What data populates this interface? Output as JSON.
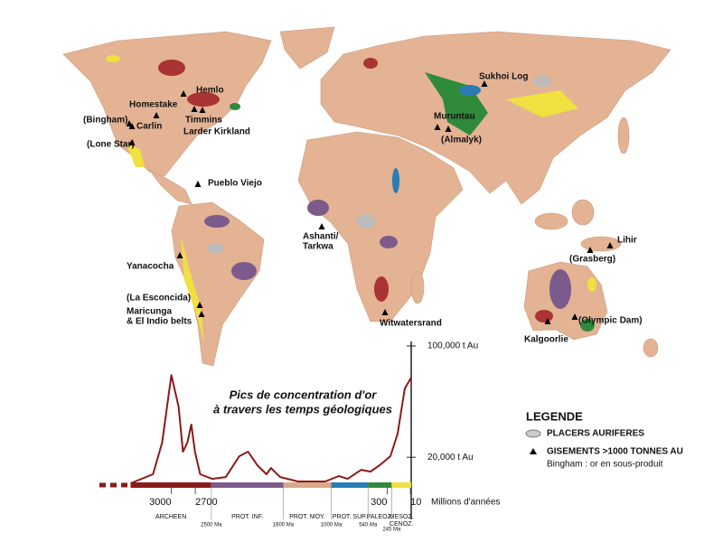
{
  "map": {
    "deposits": [
      {
        "label": [
          "Homestake"
        ]
      },
      {
        "label": [
          "Hemlo"
        ]
      },
      {
        "label": [
          "(Bingham)"
        ]
      },
      {
        "label": [
          "Carlin"
        ]
      },
      {
        "label": [
          "Timmins"
        ]
      },
      {
        "label": [
          "Larder Kirkland"
        ]
      },
      {
        "label": [
          "(Lone Star)"
        ]
      },
      {
        "label": [
          "Pueblo Viejo"
        ]
      },
      {
        "label": [
          "Yanacocha"
        ]
      },
      {
        "label": [
          "(La Esconcida)"
        ]
      },
      {
        "label": [
          "Maricunga",
          "& El Indio belts"
        ]
      },
      {
        "label": [
          "Ashanti/",
          "Tarkwa"
        ]
      },
      {
        "label": [
          "Witwatersrand"
        ]
      },
      {
        "label": [
          "Sukhoi Log"
        ]
      },
      {
        "label": [
          "Muruntau"
        ]
      },
      {
        "label": [
          "(Almalyk)"
        ]
      },
      {
        "label": [
          "Lihir"
        ]
      },
      {
        "label": [
          "(Grasberg)"
        ]
      },
      {
        "label": [
          "(Olympic Dam)"
        ]
      },
      {
        "label": [
          "Kalgoorlie"
        ]
      }
    ],
    "legend": {
      "title": "LEGENDE",
      "placers": "PLACERS AURIFERES",
      "deposits": "GISEMENTS >1000 TONNES AU",
      "note": "Bingham : or en sous-produit"
    }
  },
  "chart_data": {
    "type": "line",
    "title": [
      "Pics de concentration d'or",
      "à travers les temps géologiques"
    ],
    "x_label": "Millions d'années",
    "x": [
      3510,
      3230,
      3115,
      3000,
      2910,
      2855,
      2800,
      2750,
      2705,
      2640,
      2490,
      2320,
      2150,
      2040,
      1925,
      1810,
      1755,
      1640,
      1415,
      1075,
      905,
      795,
      625,
      510,
      395,
      260,
      170,
      80,
      0
    ],
    "series": [
      {
        "color": "#8b1a1a",
        "values": [
          1300,
          7800,
          30500,
          79000,
          56500,
          24000,
          30500,
          43500,
          24000,
          7800,
          4500,
          5800,
          20800,
          24000,
          14300,
          7800,
          12300,
          5800,
          2600,
          2600,
          6500,
          4500,
          11000,
          9700,
          14300,
          20800,
          37000,
          69500,
          77300
        ]
      }
    ],
    "xlim": [
      3900,
      0
    ],
    "xticks": [
      3000,
      2700,
      300,
      10
    ],
    "ylim": [
      0,
      100000
    ],
    "yticks": [
      {
        "value": 20000,
        "label": "20,000 t Au"
      },
      {
        "value": 100000,
        "label": "100,000 t Au"
      }
    ],
    "era_boundaries": [
      {
        "value": 2500,
        "label": "2500 Ma"
      },
      {
        "value": 1600,
        "label": "1600 Ma"
      },
      {
        "value": 1000,
        "label": "1000 Ma"
      },
      {
        "value": 540,
        "label": "540 Ma"
      },
      {
        "value": 245,
        "label": "245 Ma"
      }
    ],
    "eras": [
      {
        "label": [
          "ARCHEEN"
        ],
        "color": "#8b1a1a"
      },
      {
        "label": [
          "PROT. INF."
        ],
        "color": "#7d5a8c"
      },
      {
        "label": [
          "PROT. MOY."
        ],
        "color": "#d9a98a"
      },
      {
        "label": [
          "PROT. SUP."
        ],
        "color": "#2b7bb5"
      },
      {
        "label": [
          "PALEOZ."
        ],
        "color": "#2f8a3a"
      },
      {
        "label": [
          "MESOZ.",
          "CENOZ."
        ],
        "color": "#f0e040"
      }
    ]
  }
}
